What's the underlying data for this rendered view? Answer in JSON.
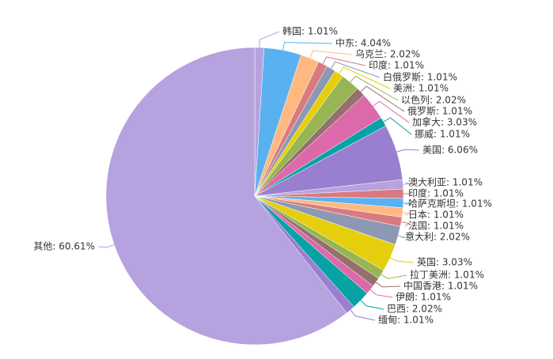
{
  "chart_data": {
    "type": "pie",
    "values": [
      1.01,
      4.04,
      2.02,
      1.01,
      1.01,
      1.01,
      2.02,
      1.01,
      3.03,
      1.01,
      6.06,
      1.01,
      1.01,
      1.01,
      1.01,
      1.01,
      2.02,
      3.03,
      1.01,
      1.01,
      1.01,
      2.02,
      1.01,
      60.61
    ],
    "value_labels": [
      "韩国: 1.01%",
      "中东: 4.04%",
      "乌克兰: 2.02%",
      "印度: 1.01%",
      "白俄罗斯: 1.01%",
      "美洲: 1.01%",
      "以色列: 2.02%",
      "俄罗斯: 1.01%",
      "加拿大: 3.03%",
      "挪威: 1.01%",
      "美国: 6.06%",
      "澳大利亚: 1.01%",
      "印度: 1.01%",
      "哈萨克斯坦: 1.01%",
      "日本: 1.01%",
      "法国: 1.01%",
      "意大利: 2.02%",
      "英国: 3.03%",
      "拉丁美洲: 1.01%",
      "中国香港: 1.01%",
      "伊朗: 1.01%",
      "巴西: 2.02%",
      "缅甸: 1.01%",
      "其他: 60.61%"
    ],
    "colors": [
      "#b6a2de",
      "#5ab1ef",
      "#ffb980",
      "#d87a80",
      "#8d98b3",
      "#e5cf0d",
      "#97b552",
      "#95706d",
      "#dc69aa",
      "#07a2a4",
      "#9a7fd1",
      "#b6a2de",
      "#d87a80",
      "#5ab1ef",
      "#ffb980",
      "#d87a80",
      "#8d98b3",
      "#e5cf0d",
      "#97b552",
      "#95706d",
      "#dc69aa",
      "#07a2a4",
      "#9a7fd1",
      "#b6a2de"
    ]
  }
}
